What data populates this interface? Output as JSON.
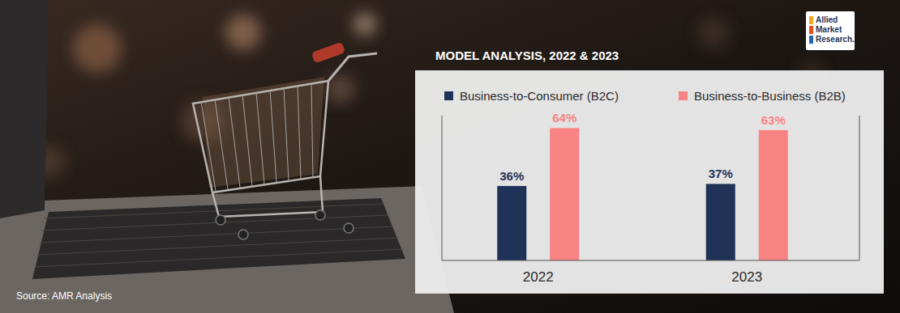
{
  "chart_data": {
    "type": "bar",
    "title": "MODEL ANALYSIS, 2022 & 2023",
    "categories": [
      "2022",
      "2023"
    ],
    "series": [
      {
        "name": "Business-to-Consumer (B2C)",
        "color": "#1f3358",
        "values": [
          36,
          37
        ],
        "value_labels": [
          "36%",
          "37%"
        ]
      },
      {
        "name": "Business-to-Business (B2B)",
        "color": "#f98383",
        "values": [
          64,
          63
        ],
        "value_labels": [
          "64%",
          "63%"
        ]
      }
    ],
    "ylim": [
      0,
      70
    ],
    "tick_labels": "x",
    "grid": false,
    "data_labels": true,
    "legend": "top"
  },
  "source": "Source: AMR Analysis",
  "logo": [
    "Allied",
    "Market",
    "Research."
  ]
}
